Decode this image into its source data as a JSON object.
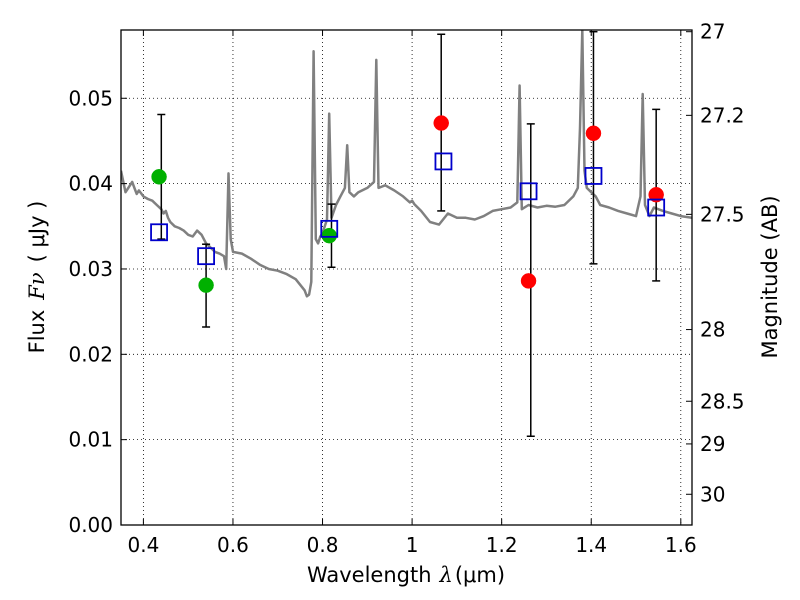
{
  "chart_data": {
    "type": "scatter",
    "xlabel": {
      "text": "Wavelength",
      "symbol": "λ",
      "unit": "(μm)"
    },
    "ylabel": {
      "text": "Flux",
      "symbol": "Fν",
      "unit": "( μJy )"
    },
    "y2label": "Magnitude (AB)",
    "xlim": [
      0.35,
      1.625
    ],
    "ylim": [
      0.0,
      0.058
    ],
    "grid": true,
    "legend": "none",
    "x_ticks": [
      {
        "value": 0.4,
        "label": "0.4"
      },
      {
        "value": 0.6,
        "label": "0.6"
      },
      {
        "value": 0.8,
        "label": "0.8"
      },
      {
        "value": 1.0,
        "label": "1"
      },
      {
        "value": 1.2,
        "label": "1.2"
      },
      {
        "value": 1.4,
        "label": "1.4"
      },
      {
        "value": 1.6,
        "label": "1.6"
      }
    ],
    "y_ticks": [
      {
        "value": 0.0,
        "label": "0.00"
      },
      {
        "value": 0.01,
        "label": "0.01"
      },
      {
        "value": 0.02,
        "label": "0.02"
      },
      {
        "value": 0.03,
        "label": "0.03"
      },
      {
        "value": 0.04,
        "label": "0.04"
      },
      {
        "value": 0.05,
        "label": "0.05"
      }
    ],
    "magnitude_ticks": [
      {
        "label": "27",
        "flux": 0.0578
      },
      {
        "label": "27.2",
        "flux": 0.048
      },
      {
        "label": "27.5",
        "flux": 0.0364
      },
      {
        "label": "28",
        "flux": 0.0229
      },
      {
        "label": "28.5",
        "flux": 0.0145
      },
      {
        "label": "29",
        "flux": 0.0095
      },
      {
        "label": "30",
        "flux": 0.0036
      }
    ],
    "spectrum": {
      "color": "#808080",
      "x": [
        0.35,
        0.36,
        0.37,
        0.375,
        0.38,
        0.385,
        0.39,
        0.4,
        0.41,
        0.42,
        0.43,
        0.44,
        0.445,
        0.45,
        0.455,
        0.46,
        0.47,
        0.48,
        0.49,
        0.5,
        0.51,
        0.52,
        0.53,
        0.54,
        0.55,
        0.56,
        0.57,
        0.58,
        0.585,
        0.59,
        0.595,
        0.6,
        0.62,
        0.64,
        0.66,
        0.68,
        0.7,
        0.72,
        0.74,
        0.76,
        0.765,
        0.77,
        0.775,
        0.78,
        0.785,
        0.79,
        0.795,
        0.8,
        0.81,
        0.815,
        0.82,
        0.83,
        0.84,
        0.85,
        0.855,
        0.86,
        0.87,
        0.88,
        0.9,
        0.915,
        0.92,
        0.925,
        0.94,
        0.96,
        0.98,
        0.995,
        1.0,
        1.005,
        1.02,
        1.04,
        1.06,
        1.08,
        1.1,
        1.12,
        1.14,
        1.16,
        1.18,
        1.2,
        1.22,
        1.235,
        1.24,
        1.245,
        1.26,
        1.28,
        1.3,
        1.32,
        1.34,
        1.36,
        1.37,
        1.375,
        1.38,
        1.385,
        1.39,
        1.4,
        1.41,
        1.42,
        1.44,
        1.46,
        1.48,
        1.5,
        1.51,
        1.515,
        1.52,
        1.53,
        1.54,
        1.56,
        1.58,
        1.6,
        1.625
      ],
      "y": [
        0.0415,
        0.039,
        0.0398,
        0.0402,
        0.0395,
        0.0388,
        0.0392,
        0.0385,
        0.0382,
        0.038,
        0.0375,
        0.037,
        0.0365,
        0.0368,
        0.036,
        0.0355,
        0.035,
        0.0348,
        0.0345,
        0.034,
        0.0338,
        0.0345,
        0.034,
        0.033,
        0.0325,
        0.032,
        0.0318,
        0.0315,
        0.03,
        0.0412,
        0.0335,
        0.032,
        0.0318,
        0.0312,
        0.0305,
        0.03,
        0.0298,
        0.0294,
        0.0288,
        0.0275,
        0.0268,
        0.027,
        0.0285,
        0.0555,
        0.0335,
        0.033,
        0.0338,
        0.0342,
        0.0358,
        0.0482,
        0.036,
        0.0375,
        0.0385,
        0.0395,
        0.0445,
        0.039,
        0.0385,
        0.039,
        0.0395,
        0.0402,
        0.0545,
        0.0395,
        0.0398,
        0.0392,
        0.0385,
        0.0378,
        0.038,
        0.0376,
        0.0368,
        0.0355,
        0.0352,
        0.0365,
        0.036,
        0.036,
        0.0358,
        0.0362,
        0.0368,
        0.037,
        0.0372,
        0.0378,
        0.0515,
        0.037,
        0.0375,
        0.0372,
        0.0374,
        0.0373,
        0.0375,
        0.0385,
        0.0395,
        0.0465,
        0.058,
        0.0415,
        0.0395,
        0.039,
        0.0385,
        0.0375,
        0.0372,
        0.0368,
        0.0365,
        0.0362,
        0.0385,
        0.0505,
        0.0375,
        0.0362,
        0.0372,
        0.0368,
        0.0365,
        0.0362,
        0.036
      ]
    },
    "series": [
      {
        "color": "#00b000",
        "marker": "circle",
        "x": [
          0.435,
          0.54,
          0.815
        ],
        "y": [
          0.0408,
          0.0281,
          0.0339
        ]
      },
      {
        "color": "#ff0000",
        "marker": "circle",
        "x": [
          1.065,
          1.26,
          1.405,
          1.545
        ],
        "y": [
          0.0471,
          0.0286,
          0.0459,
          0.0387
        ]
      },
      {
        "color": "#0000cc",
        "marker": "open-square",
        "x": [
          0.435,
          0.54,
          0.815,
          1.07,
          1.26,
          1.405,
          1.545
        ],
        "y": [
          0.0343,
          0.0315,
          0.0347,
          0.0426,
          0.0391,
          0.0409,
          0.0372
        ]
      }
    ],
    "error_bars": {
      "color": "#000000",
      "x": [
        0.44,
        0.54,
        0.82,
        1.065,
        1.265,
        1.405,
        1.545
      ],
      "y_low": [
        0.0335,
        0.0232,
        0.0302,
        0.0368,
        0.0104,
        0.0306,
        0.0286
      ],
      "y_high": [
        0.0481,
        0.0329,
        0.0376,
        0.0575,
        0.047,
        0.0578,
        0.0487
      ]
    }
  }
}
